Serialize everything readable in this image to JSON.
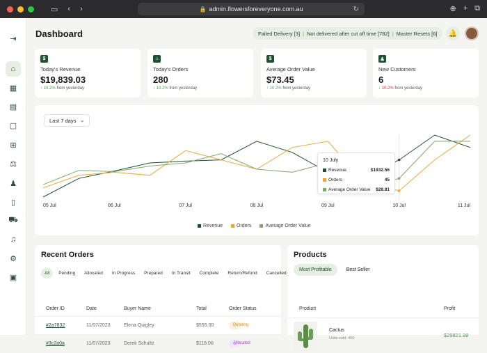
{
  "browser": {
    "url": "admin.flowersforeveryone.com.au"
  },
  "sidebar": {
    "icons": [
      "logout-icon",
      "home-icon",
      "calendar-icon",
      "clipboard-icon",
      "chat-icon",
      "org-chart-icon",
      "scale-icon",
      "user-icon",
      "document-icon",
      "truck-icon",
      "bell-icon",
      "gear-icon",
      "map-icon"
    ],
    "active": "home-icon"
  },
  "header": {
    "title": "Dashboard",
    "alerts": [
      {
        "label": "Failed Delivery",
        "count": "[3]"
      },
      {
        "label": "Not delivered after cut off time",
        "count": "[782]"
      },
      {
        "label": "Master Resets",
        "count": "[6]"
      }
    ]
  },
  "kpis": [
    {
      "icon": "dollar-icon",
      "glyph": "$",
      "label": "Today's Revenue",
      "value": "$19,839.03",
      "delta": "10.2%",
      "delta_dir": "up",
      "delta_suffix": "from yesterday"
    },
    {
      "icon": "cart-icon",
      "glyph": "⌂",
      "label": "Today's Orders",
      "value": "280",
      "delta": "10.2%",
      "delta_dir": "up",
      "delta_suffix": "from yesterday"
    },
    {
      "icon": "dollar-icon",
      "glyph": "$",
      "label": "Average Order Value",
      "value": "$73.45",
      "delta": "10.2%",
      "delta_dir": "up",
      "delta_suffix": "from yesterday"
    },
    {
      "icon": "user-icon",
      "glyph": "♟",
      "label": "New Customers",
      "value": "6",
      "delta": "10.2%",
      "delta_dir": "down",
      "delta_suffix": "from yesterday"
    }
  ],
  "chart": {
    "range_label": "Last 7 days",
    "tooltip": {
      "title": "10 July",
      "rows": [
        {
          "name": "Revenue",
          "value": "$1932.56"
        },
        {
          "name": "Orders",
          "value": "45"
        },
        {
          "name": "Average Order Value",
          "value": "$28.81"
        }
      ]
    }
  },
  "chart_data": {
    "type": "line",
    "x": [
      "05 Jul",
      "",
      "06 Jul",
      "",
      "07 Jul",
      "",
      "08 Jul",
      "",
      "09 Jul",
      "",
      "10 Jul",
      "",
      "11 Jul"
    ],
    "x_ticks": [
      "05 Jul",
      "06 Jul",
      "07 Jul",
      "08 Jul",
      "09 Jul",
      "10 Jul",
      "11 Jul"
    ],
    "series": [
      {
        "name": "Revenue",
        "color": "#1f4e33",
        "values": [
          0,
          30,
          42,
          55,
          58,
          60,
          90,
          72,
          40,
          30,
          60,
          100,
          80
        ]
      },
      {
        "name": "Orders",
        "color": "#e8a93a",
        "values": [
          15,
          35,
          40,
          35,
          75,
          60,
          45,
          80,
          90,
          25,
          10,
          60,
          100
        ]
      },
      {
        "name": "Average Order Value",
        "color": "#7fa86b",
        "values": [
          20,
          43,
          41,
          50,
          55,
          70,
          45,
          40,
          55,
          15,
          30,
          90,
          90
        ]
      }
    ],
    "grid": false,
    "legend": "bottom"
  },
  "orders": {
    "title": "Recent Orders",
    "filters": [
      "All",
      "Pending",
      "Allocated",
      "In Progress",
      "Prepared",
      "In Transit",
      "Complete",
      "Return/Refund",
      "Cancelled"
    ],
    "active_filter": "All",
    "columns": [
      "Order ID",
      "Date",
      "Buyer Name",
      "Total",
      "Order Status"
    ],
    "rows": [
      {
        "id": "#2a7832",
        "date": "11/07/2023",
        "buyer": "Elena Quigley",
        "total": "$555.00",
        "status": "Pending",
        "status_class": "pending"
      },
      {
        "id": "#3c2a0a",
        "date": "11/07/2023",
        "buyer": "Derek Schultz",
        "total": "$118.00",
        "status": "Allocated",
        "status_class": "allocated"
      }
    ]
  },
  "products": {
    "title": "Products",
    "tabs": [
      "Most Profitable",
      "Best Seller"
    ],
    "active_tab": "Most Profitable",
    "columns": [
      "Product",
      "Profit"
    ],
    "rows": [
      {
        "name": "Cactus",
        "sold": "Units sold: 450",
        "profit": "$29821.99"
      }
    ]
  }
}
